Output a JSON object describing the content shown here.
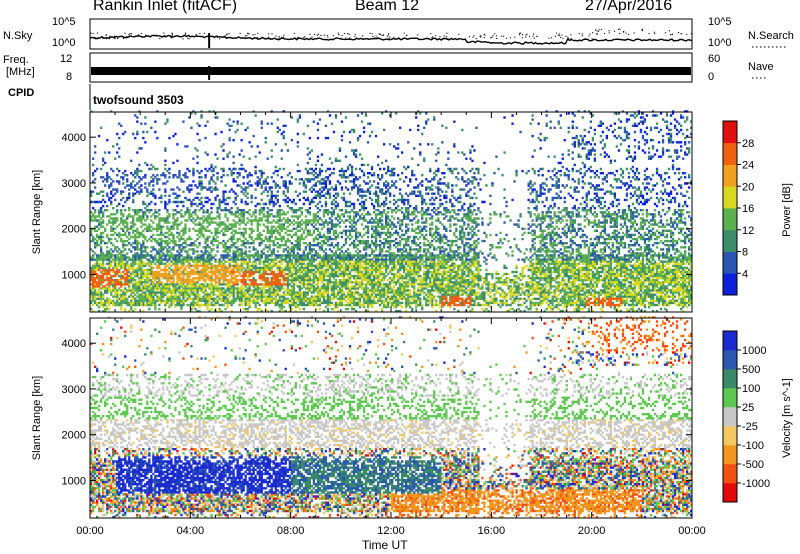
{
  "header": {
    "station": "Rankin Inlet (fitACF)",
    "beam": "Beam 12",
    "date": "27/Apr/2016"
  },
  "left_labels": {
    "nsky": "N.Sky",
    "freq_line1": "Freq.",
    "freq_line2": "[MHz]",
    "cpid": "CPID"
  },
  "right_labels": {
    "nsearch": "N.Search",
    "nave": "Nave"
  },
  "cpid_value": "twofsound 3503",
  "axes": {
    "xlabel": "Time UT",
    "time_ticks": [
      "00:00",
      "04:00",
      "08:00",
      "12:00",
      "16:00",
      "20:00",
      "00:00"
    ],
    "range_ylabel": "Slant Range [km]",
    "range_ticks": [
      "1000",
      "2000",
      "3000",
      "4000"
    ],
    "range_min": 180,
    "range_max": 4550,
    "nsky_ticks": [
      "10^5",
      "10^0"
    ],
    "nsearch_ticks": [
      "10^5",
      "10^0"
    ],
    "freq_ticks": [
      "12",
      "8"
    ],
    "nave_ticks": [
      "60",
      "0"
    ]
  },
  "colorbars": {
    "power": {
      "label": "Power [dB]",
      "ticks": [
        "4",
        "8",
        "12",
        "16",
        "20",
        "24",
        "28"
      ],
      "colors": [
        "#0b20d8",
        "#2a55b0",
        "#3c8e6a",
        "#5cb050",
        "#d8d820",
        "#f0a020",
        "#f06010",
        "#e01010"
      ]
    },
    "velocity": {
      "label": "Velocity [m s^-1]",
      "ticks": [
        "-1000",
        "-500",
        "-100",
        "-25",
        "25",
        "100",
        "500",
        "1000"
      ],
      "colors": [
        "#e00a0a",
        "#f05010",
        "#f39620",
        "#f4c860",
        "#c8c8c8",
        "#5ec850",
        "#3a8a6a",
        "#2a58b0",
        "#1a2ad0"
      ]
    }
  },
  "chart_data": {
    "type": "heatmap",
    "title": "Rankin Inlet (fitACF)",
    "x_unit": "hours UT",
    "xlim": [
      0,
      24
    ],
    "ylim": [
      180,
      4550
    ],
    "power_regions": [
      {
        "t0": 0.0,
        "t1": 1.5,
        "r0": 700,
        "r1": 1100,
        "db": 26
      },
      {
        "t0": 2.5,
        "t1": 6.0,
        "r0": 800,
        "r1": 1200,
        "db": 20
      },
      {
        "t0": 5.5,
        "t1": 7.8,
        "r0": 750,
        "r1": 1050,
        "db": 27
      },
      {
        "t0": 14.0,
        "t1": 15.2,
        "r0": 300,
        "r1": 500,
        "db": 27
      },
      {
        "t0": 19.8,
        "t1": 21.2,
        "r0": 300,
        "r1": 450,
        "db": 26
      },
      {
        "t0": 0.0,
        "t1": 9.0,
        "r0": 1700,
        "r1": 2300,
        "db": 14
      },
      {
        "t0": 0.0,
        "t1": 4.0,
        "r0": 2800,
        "r1": 3200,
        "db": 6
      }
    ]
  }
}
